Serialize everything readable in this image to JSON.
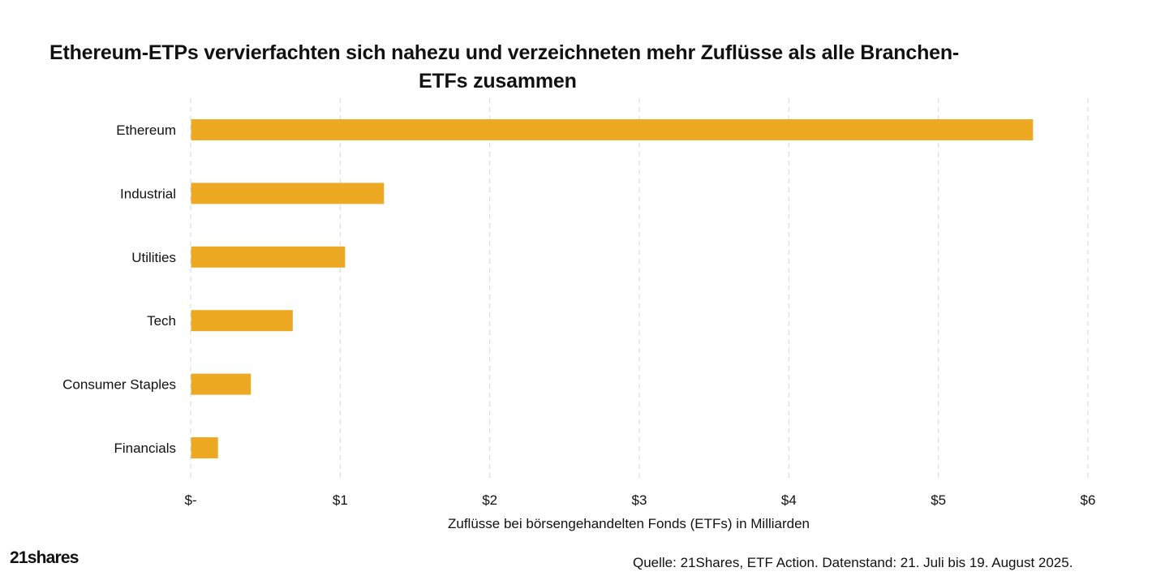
{
  "logo_text": "21shares",
  "source_text": "Quelle: 21Shares, ETF Action. Datenstand: 21. Juli bis 19. August 2025.",
  "colors": {
    "bar": "#EDA921",
    "grid": "#D9D9D9",
    "text": "#111111"
  },
  "chart_data": {
    "type": "bar",
    "orientation": "horizontal",
    "title_lines": [
      "Ethereum-ETPs vervierfachten sich nahezu und verzeichneten mehr Zuflüsse als alle Branchen-",
      "ETFs zusammen"
    ],
    "xlabel": "Zuflüsse bei börsengehandelten Fonds (ETFs) in Milliarden",
    "ylabel": "",
    "categories": [
      "Ethereum",
      "Industrial",
      "Utilities",
      "Tech",
      "Consumer Staples",
      "Financials"
    ],
    "values": [
      5.63,
      1.29,
      1.03,
      0.68,
      0.4,
      0.18
    ],
    "xlim": [
      0,
      6
    ],
    "ticks": [
      0,
      1,
      2,
      3,
      4,
      5,
      6
    ],
    "tick_labels": [
      "$-",
      "$1",
      "$2",
      "$3",
      "$4",
      "$5",
      "$6"
    ],
    "grid": "vertical dashed",
    "legend": "none"
  }
}
